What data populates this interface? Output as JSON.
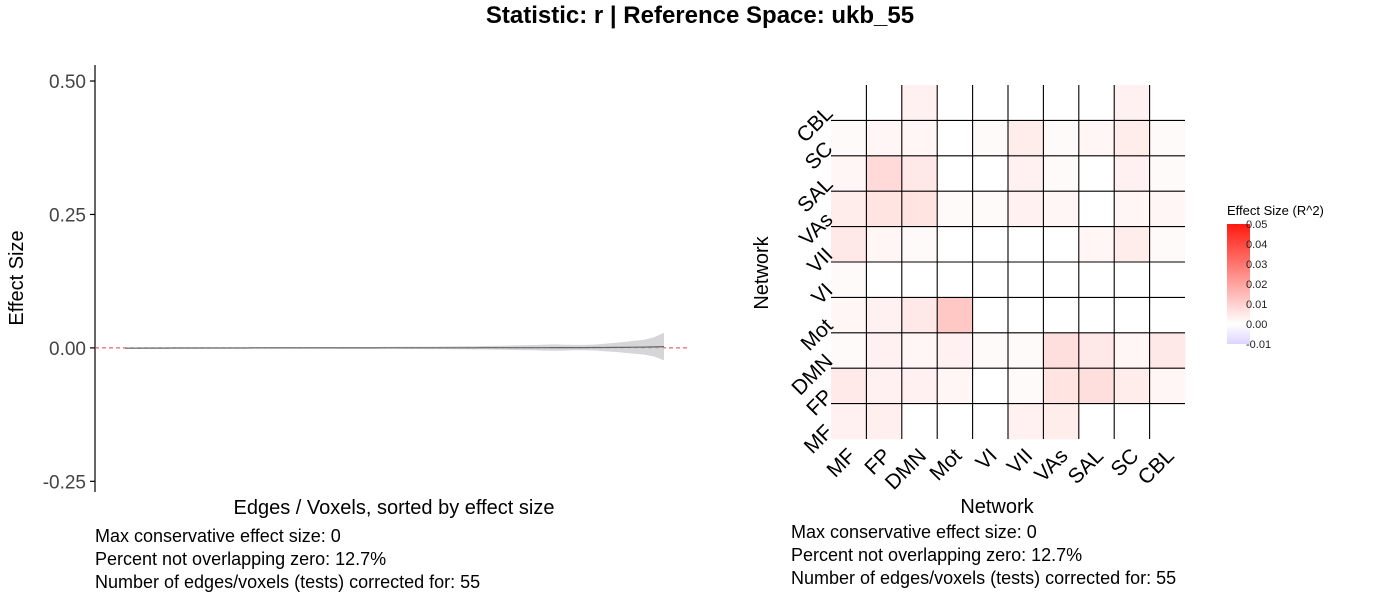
{
  "title": "Statistic: r   |  Reference Space: ukb_55",
  "chart_data": [
    {
      "type": "line",
      "xlabel": "Edges / Voxels, sorted by effect size",
      "ylabel": "Effect Size",
      "ylim": [
        -0.27,
        0.53
      ],
      "yticks": [
        -0.25,
        0.0,
        0.25,
        0.5
      ],
      "ytick_labels": [
        "-0.25",
        "0.00",
        "0.25",
        "0.50"
      ],
      "reference_line": 0,
      "grid": false,
      "n_points": 55,
      "estimate": [
        -0.0005,
        -0.0005,
        -0.0004,
        -0.0004,
        -0.0004,
        -0.0003,
        -0.0003,
        -0.0003,
        -0.0003,
        -0.0002,
        -0.0002,
        -0.0002,
        -0.0002,
        -0.0001,
        -0.0001,
        -0.0001,
        -0.0001,
        -0.0001,
        0,
        0,
        0,
        0,
        0,
        0,
        0,
        0,
        0.0001,
        0.0001,
        0.0001,
        0.0001,
        0.0001,
        0.0001,
        0.0002,
        0.0002,
        0.0002,
        0.0002,
        0.0003,
        0.0003,
        0.0003,
        0.0003,
        0.0004,
        0.0004,
        0.0004,
        0.0005,
        0.0005,
        0.0006,
        0.0006,
        0.0007,
        0.0008,
        0.0009,
        0.001,
        0.0012,
        0.0014,
        0.0018,
        0.0025
      ],
      "ci_halfwidth": [
        0.001,
        0.001,
        0.001,
        0.001,
        0.001,
        0.001,
        0.001,
        0.001,
        0.001,
        0.001,
        0.001,
        0.001,
        0.001,
        0.001,
        0.001,
        0.0012,
        0.0012,
        0.0012,
        0.0013,
        0.0013,
        0.0014,
        0.0014,
        0.0015,
        0.0015,
        0.0016,
        0.0017,
        0.0018,
        0.0019,
        0.002,
        0.0021,
        0.0022,
        0.0023,
        0.0024,
        0.0026,
        0.0028,
        0.003,
        0.0032,
        0.0035,
        0.0038,
        0.0042,
        0.0046,
        0.005,
        0.0055,
        0.006,
        0.0055,
        0.005,
        0.005,
        0.0055,
        0.007,
        0.0085,
        0.01,
        0.012,
        0.014,
        0.018,
        0.026
      ],
      "caption": [
        "Max conservative effect size: 0",
        "Percent not overlapping zero: 12.7%",
        "Number of edges/voxels (tests) corrected for: 55"
      ]
    },
    {
      "type": "heatmap",
      "xlabel": "Network",
      "ylabel": "Network",
      "categories": [
        "MF",
        "FP",
        "DMN",
        "Mot",
        "VI",
        "VII",
        "VAs",
        "SAL",
        "SC",
        "CBL"
      ],
      "values": [
        [
          0.003,
          0.0035,
          0,
          0,
          0,
          0.003,
          0.004,
          0,
          0,
          0
        ],
        [
          0.0045,
          0.003,
          0.003,
          0.002,
          0,
          0.001,
          0.006,
          0.007,
          0.004,
          0.002
        ],
        [
          0.001,
          0.003,
          0.002,
          0.003,
          0.001,
          0.001,
          0.007,
          0.005,
          0.002,
          0.005
        ],
        [
          0.002,
          0.003,
          0.005,
          0.012,
          0,
          0,
          0,
          0,
          0,
          0
        ],
        [
          0.001,
          0,
          0,
          0,
          0,
          0,
          0,
          0,
          0,
          0
        ],
        [
          0.005,
          0.002,
          0.001,
          0,
          0,
          0,
          0,
          0.002,
          0.004,
          0.001
        ],
        [
          0.004,
          0.006,
          0.006,
          0.001,
          0.001,
          0.003,
          0.002,
          0,
          0.002,
          0.002
        ],
        [
          0.002,
          0.008,
          0.005,
          0,
          0,
          0.003,
          0.001,
          0,
          0.003,
          0.001
        ],
        [
          0.001,
          0.002,
          0.002,
          0,
          0.001,
          0.004,
          0.001,
          0.002,
          0.004,
          0.001
        ],
        [
          0,
          0,
          0.003,
          0,
          0,
          0,
          0,
          0,
          0.003,
          0
        ]
      ],
      "legend": {
        "title": "Effect Size (R^2)",
        "ticks": [
          0.05,
          0.04,
          0.03,
          0.02,
          0.01,
          0.0,
          -0.01
        ],
        "tick_labels": [
          "0.05",
          "0.04",
          "0.03",
          "0.02",
          "0.01",
          "0.00",
          "-0.01"
        ],
        "range": [
          -0.01,
          0.05
        ],
        "low_color": "#ddd4ff",
        "mid_color": "#ffffff",
        "high_color": "#ff1a0f"
      },
      "caption": [
        "Max conservative effect size: 0",
        "Percent not overlapping zero: 12.7%",
        "Number of edges/voxels (tests) corrected for: 55"
      ]
    }
  ]
}
